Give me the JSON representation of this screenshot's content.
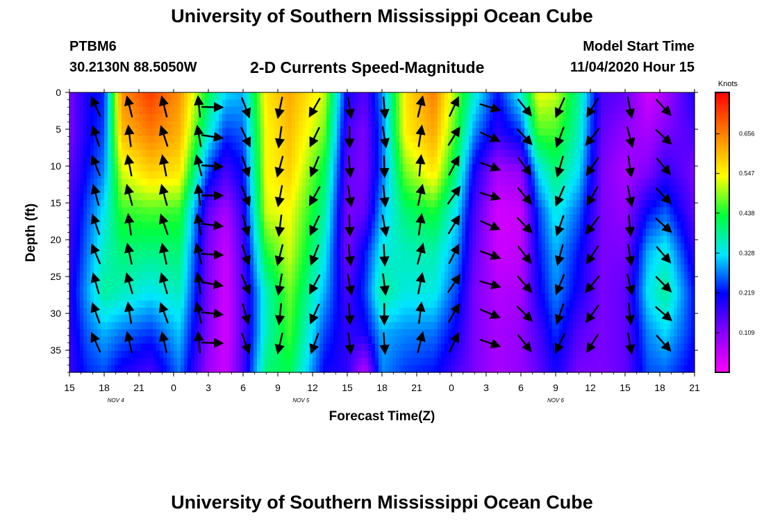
{
  "header": {
    "title": "University of Southern Mississippi Ocean Cube",
    "station_id": "PTBM6",
    "station_coords": "30.2130N 88.5050W",
    "subtitle": "2-D Currents Speed-Magnitude",
    "model_start_label": "Model Start Time",
    "model_start_value": "11/04/2020 Hour 15"
  },
  "footer": {
    "title": "University of Southern Mississippi Ocean Cube"
  },
  "chart_data": {
    "type": "heatmap",
    "title": "2-D Currents Speed-Magnitude",
    "xlabel": "Forecast Time(Z)",
    "ylabel": "Depth (ft)",
    "x_hours": [
      0,
      3,
      6,
      9,
      12,
      15,
      18,
      21,
      24,
      27,
      30,
      33,
      36,
      39,
      42,
      45,
      48,
      51,
      54
    ],
    "x_tick_labels": [
      "15",
      "18",
      "21",
      "0",
      "3",
      "6",
      "9",
      "12",
      "15",
      "18",
      "21",
      "0",
      "3",
      "6",
      "9",
      "12",
      "15",
      "18",
      "21"
    ],
    "date_labels": [
      {
        "hour": 4,
        "text": "NOV 4"
      },
      {
        "hour": 20,
        "text": "NOV 5"
      },
      {
        "hour": 42,
        "text": "NOV 6"
      }
    ],
    "y_ticks": [
      0,
      5,
      10,
      15,
      20,
      25,
      30,
      35
    ],
    "ylim": [
      0,
      38
    ],
    "colorbar": {
      "label": "Knots",
      "range": [
        0.0,
        0.77
      ],
      "tick_values": [
        0.109,
        0.219,
        0.328,
        0.438,
        0.547,
        0.656
      ],
      "tick_labels": [
        "0.109",
        "0.219",
        "0.328",
        "0.438",
        "0.547",
        "0.656"
      ]
    },
    "speed_profiles": [
      {
        "hour": 0,
        "knots": [
          0.12,
          0.12,
          0.14,
          0.16,
          0.17,
          0.19,
          0.18,
          0.17
        ]
      },
      {
        "hour": 1.5,
        "knots": [
          0.2,
          0.2,
          0.22,
          0.25,
          0.27,
          0.29,
          0.26,
          0.23
        ]
      },
      {
        "hour": 3,
        "knots": [
          0.23,
          0.25,
          0.28,
          0.33,
          0.36,
          0.38,
          0.3,
          0.25
        ]
      },
      {
        "hour": 4.5,
        "knots": [
          0.64,
          0.6,
          0.52,
          0.45,
          0.4,
          0.36,
          0.27,
          0.2
        ]
      },
      {
        "hour": 7,
        "knots": [
          0.72,
          0.66,
          0.58,
          0.46,
          0.39,
          0.33,
          0.24,
          0.16
        ]
      },
      {
        "hour": 9.5,
        "knots": [
          0.64,
          0.61,
          0.56,
          0.45,
          0.4,
          0.36,
          0.31,
          0.27
        ]
      },
      {
        "hour": 12,
        "knots": [
          0.42,
          0.35,
          0.24,
          0.14,
          0.12,
          0.12,
          0.11,
          0.09
        ]
      },
      {
        "hour": 13.5,
        "knots": [
          0.32,
          0.24,
          0.16,
          0.08,
          0.05,
          0.04,
          0.04,
          0.05
        ]
      },
      {
        "hour": 15,
        "knots": [
          0.3,
          0.26,
          0.22,
          0.18,
          0.16,
          0.15,
          0.15,
          0.16
        ]
      },
      {
        "hour": 17,
        "knots": [
          0.56,
          0.54,
          0.54,
          0.52,
          0.44,
          0.36,
          0.36,
          0.4
        ]
      },
      {
        "hour": 19,
        "knots": [
          0.62,
          0.6,
          0.58,
          0.54,
          0.52,
          0.48,
          0.46,
          0.42
        ]
      },
      {
        "hour": 22,
        "knots": [
          0.52,
          0.48,
          0.42,
          0.38,
          0.34,
          0.3,
          0.25,
          0.21
        ]
      },
      {
        "hour": 24,
        "knots": [
          0.2,
          0.16,
          0.14,
          0.12,
          0.12,
          0.16,
          0.18,
          0.18
        ]
      },
      {
        "hour": 25.5,
        "knots": [
          0.15,
          0.12,
          0.12,
          0.14,
          0.22,
          0.24,
          0.2,
          0.06
        ]
      },
      {
        "hour": 27,
        "knots": [
          0.28,
          0.26,
          0.26,
          0.3,
          0.34,
          0.38,
          0.3,
          0.28
        ]
      },
      {
        "hour": 29,
        "knots": [
          0.56,
          0.55,
          0.48,
          0.4,
          0.36,
          0.34,
          0.28,
          0.24
        ]
      },
      {
        "hour": 31.5,
        "knots": [
          0.66,
          0.62,
          0.56,
          0.44,
          0.37,
          0.34,
          0.27,
          0.22
        ]
      },
      {
        "hour": 33.5,
        "knots": [
          0.48,
          0.44,
          0.38,
          0.32,
          0.28,
          0.24,
          0.2,
          0.16
        ]
      },
      {
        "hour": 35,
        "knots": [
          0.35,
          0.28,
          0.2,
          0.16,
          0.14,
          0.12,
          0.12,
          0.12
        ]
      },
      {
        "hour": 37,
        "knots": [
          0.22,
          0.18,
          0.08,
          0.04,
          0.05,
          0.07,
          0.08,
          0.08
        ]
      },
      {
        "hour": 39,
        "knots": [
          0.35,
          0.24,
          0.1,
          0.05,
          0.06,
          0.08,
          0.1,
          0.1
        ]
      },
      {
        "hour": 40.5,
        "knots": [
          0.54,
          0.46,
          0.32,
          0.24,
          0.22,
          0.2,
          0.16,
          0.14
        ]
      },
      {
        "hour": 42,
        "knots": [
          0.52,
          0.46,
          0.4,
          0.34,
          0.3,
          0.28,
          0.24,
          0.2
        ]
      },
      {
        "hour": 44,
        "knots": [
          0.38,
          0.36,
          0.32,
          0.26,
          0.22,
          0.2,
          0.15,
          0.12
        ]
      },
      {
        "hour": 46,
        "knots": [
          0.16,
          0.14,
          0.12,
          0.12,
          0.12,
          0.12,
          0.12,
          0.12
        ]
      },
      {
        "hour": 48,
        "knots": [
          0.14,
          0.1,
          0.08,
          0.1,
          0.12,
          0.14,
          0.14,
          0.14
        ]
      },
      {
        "hour": 50,
        "knots": [
          0.04,
          0.08,
          0.12,
          0.22,
          0.3,
          0.33,
          0.28,
          0.25
        ]
      },
      {
        "hour": 51.5,
        "knots": [
          0.08,
          0.12,
          0.18,
          0.26,
          0.34,
          0.38,
          0.32,
          0.26
        ]
      },
      {
        "hour": 54,
        "knots": [
          0.2,
          0.16,
          0.12,
          0.14,
          0.18,
          0.22,
          0.22,
          0.2
        ]
      }
    ],
    "vector_columns": [
      {
        "hour": 2.3,
        "angle": -20
      },
      {
        "hour": 5.2,
        "angle": -12
      },
      {
        "hour": 8.2,
        "angle": -15
      },
      {
        "hour": 11.2,
        "angle": -10
      },
      {
        "hour": 12.3,
        "angle": 95
      },
      {
        "hour": 15.2,
        "angle": 160
      },
      {
        "hour": 18.2,
        "angle": 190
      },
      {
        "hour": 21.2,
        "angle": 205
      },
      {
        "hour": 24.2,
        "angle": 175
      },
      {
        "hour": 27.2,
        "angle": 175
      },
      {
        "hour": 30.3,
        "angle": 10
      },
      {
        "hour": 33.2,
        "angle": 30
      },
      {
        "hour": 36.3,
        "angle": 110
      },
      {
        "hour": 39.3,
        "angle": 140
      },
      {
        "hour": 42.4,
        "angle": 200
      },
      {
        "hour": 45.2,
        "angle": 215
      },
      {
        "hour": 48.4,
        "angle": 170
      },
      {
        "hour": 51.3,
        "angle": 135
      }
    ]
  }
}
